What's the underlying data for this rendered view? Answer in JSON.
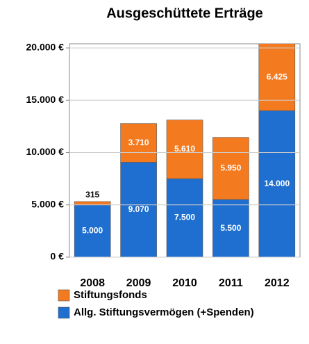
{
  "chart_data": {
    "type": "stacked_bar",
    "title": "Ausgeschüttete Erträge",
    "categories": [
      "2008",
      "2009",
      "2010",
      "2011",
      "2012"
    ],
    "series": [
      {
        "name": "Allg. Stiftungsvermögen (+Spenden)",
        "color": "#1f6fd0",
        "values": [
          5000,
          9070,
          7500,
          5500,
          14000
        ],
        "value_labels": [
          "5.000",
          "9.070",
          "7.500",
          "5.500",
          "14.000"
        ]
      },
      {
        "name": "Stiftungsfonds",
        "color": "#f47a20",
        "values": [
          315,
          3710,
          5610,
          5950,
          6425
        ],
        "value_labels": [
          "315",
          "3.710",
          "5.610",
          "5.950",
          "6.425"
        ]
      }
    ],
    "ylim": [
      0,
      20000
    ],
    "yticks": [
      {
        "value": 0,
        "label": "0 €"
      },
      {
        "value": 5000,
        "label": "5.000 €"
      },
      {
        "value": 10000,
        "label": "10.000 €"
      },
      {
        "value": 15000,
        "label": "15.000 €"
      },
      {
        "value": 20000,
        "label": "20.000 €"
      }
    ],
    "grid": true
  }
}
